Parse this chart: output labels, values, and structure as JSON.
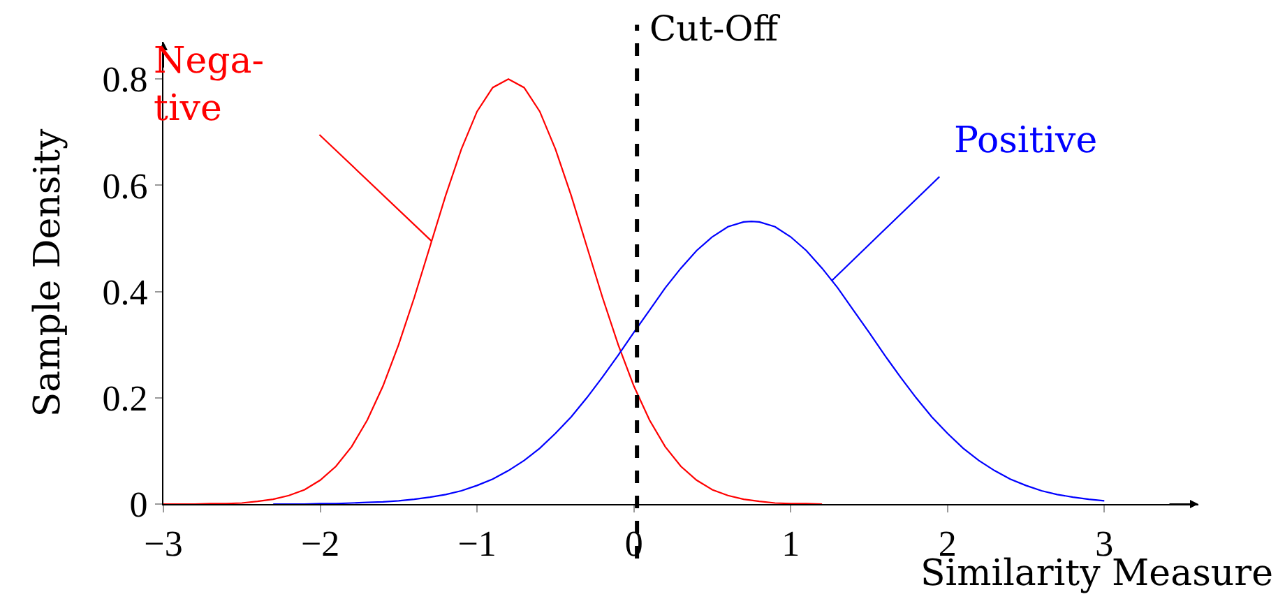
{
  "chart_data": {
    "type": "line",
    "xlabel": "Similarity Measure",
    "ylabel": "Sample Density",
    "xlim": [
      -3,
      3.6
    ],
    "ylim": [
      0,
      0.87
    ],
    "xticks": [
      -3,
      -2,
      -1,
      0,
      1,
      2,
      3
    ],
    "yticks": [
      0,
      0.2,
      0.4,
      0.6,
      0.8
    ],
    "series": [
      {
        "color": "#ff0000",
        "x": [
          -3.0,
          -2.9,
          -2.8,
          -2.7,
          -2.6,
          -2.5,
          -2.4,
          -2.3,
          -2.2,
          -2.1,
          -2.0,
          -1.9,
          -1.8,
          -1.7,
          -1.6,
          -1.5,
          -1.4,
          -1.3,
          -1.2,
          -1.1,
          -1.0,
          -0.9,
          -0.8,
          -0.7,
          -0.6,
          -0.5,
          -0.4,
          -0.3,
          -0.2,
          -0.1,
          0.0,
          0.1,
          0.2,
          0.3,
          0.4,
          0.5,
          0.6,
          0.7,
          0.8,
          0.9,
          1.0,
          1.1,
          1.2
        ],
        "values": [
          0.0,
          0.0,
          0.0,
          0.001,
          0.001,
          0.002,
          0.005,
          0.009,
          0.016,
          0.027,
          0.045,
          0.071,
          0.108,
          0.158,
          0.222,
          0.3,
          0.389,
          0.485,
          0.581,
          0.668,
          0.739,
          0.784,
          0.8,
          0.784,
          0.739,
          0.668,
          0.581,
          0.485,
          0.389,
          0.3,
          0.222,
          0.158,
          0.108,
          0.071,
          0.045,
          0.027,
          0.016,
          0.009,
          0.005,
          0.002,
          0.001,
          0.001,
          0.0
        ]
      },
      {
        "color": "#0000ff",
        "x": [
          -2.3,
          -2.2,
          -2.1,
          -2.0,
          -1.9,
          -1.8,
          -1.7,
          -1.6,
          -1.5,
          -1.4,
          -1.3,
          -1.2,
          -1.1,
          -1.0,
          -0.9,
          -0.8,
          -0.7,
          -0.6,
          -0.5,
          -0.4,
          -0.3,
          -0.2,
          -0.1,
          0.0,
          0.1,
          0.2,
          0.3,
          0.4,
          0.5,
          0.6,
          0.7,
          0.75,
          0.8,
          0.9,
          1.0,
          1.1,
          1.2,
          1.3,
          1.4,
          1.5,
          1.6,
          1.7,
          1.8,
          1.9,
          2.0,
          2.1,
          2.2,
          2.3,
          2.4,
          2.5,
          2.6,
          2.7,
          2.8,
          2.9,
          3.0
        ],
        "values": [
          0.0,
          0.0,
          0.0,
          0.001,
          0.001,
          0.002,
          0.003,
          0.004,
          0.006,
          0.009,
          0.013,
          0.018,
          0.025,
          0.035,
          0.047,
          0.063,
          0.082,
          0.105,
          0.133,
          0.164,
          0.2,
          0.239,
          0.28,
          0.323,
          0.365,
          0.407,
          0.444,
          0.477,
          0.503,
          0.522,
          0.531,
          0.532,
          0.531,
          0.522,
          0.503,
          0.477,
          0.444,
          0.407,
          0.365,
          0.323,
          0.28,
          0.239,
          0.2,
          0.164,
          0.133,
          0.105,
          0.082,
          0.063,
          0.047,
          0.035,
          0.025,
          0.018,
          0.013,
          0.009,
          0.006
        ]
      }
    ],
    "ref_lines": [
      {
        "axis": "x",
        "value": 0.02,
        "label": "Cut-Off",
        "color": "#000000",
        "line_style": "dashed"
      }
    ],
    "annotations": [
      {
        "text": "Nega-\ntive",
        "x": -1.29,
        "y": 0.495
      },
      {
        "text": "Positive",
        "x": 1.26,
        "y": 0.42
      }
    ]
  }
}
